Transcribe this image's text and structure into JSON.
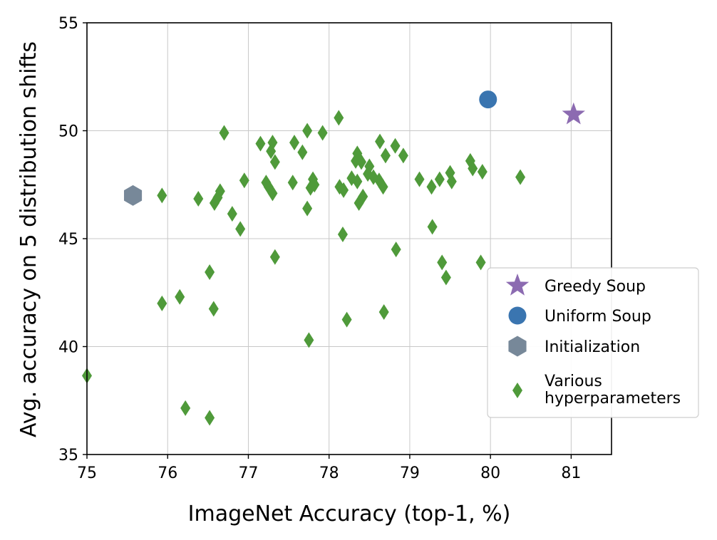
{
  "chart_data": {
    "type": "scatter",
    "xlabel": "ImageNet Accuracy (top-1, %)",
    "ylabel": "Avg. accuracy on 5 distribution shifts",
    "xlim": [
      75,
      81.5
    ],
    "ylim": [
      35,
      55
    ],
    "xticks": [
      75,
      76,
      77,
      78,
      79,
      80,
      81
    ],
    "yticks": [
      35,
      40,
      45,
      50,
      55
    ],
    "xtick_labels": [
      "75",
      "76",
      "77",
      "78",
      "79",
      "80",
      "81"
    ],
    "ytick_labels": [
      "35",
      "40",
      "45",
      "50",
      "55"
    ],
    "grid": true,
    "legend_position": "right",
    "series": [
      {
        "name": "Greedy Soup",
        "marker": "star",
        "color": "#8c6bb1",
        "points": [
          [
            81.03,
            50.75
          ]
        ]
      },
      {
        "name": "Uniform Soup",
        "marker": "circle",
        "color": "#3a75b0",
        "points": [
          [
            79.97,
            51.45
          ]
        ]
      },
      {
        "name": "Initialization",
        "marker": "hexagon",
        "color": "#778899",
        "points": [
          [
            75.57,
            47.0
          ]
        ]
      },
      {
        "name": "Various hyperparameters",
        "legend_lines": [
          "Various",
          "hyperparameters"
        ],
        "marker": "thin_diamond",
        "color": "#4f9a3a",
        "points": [
          [
            75.0,
            38.65
          ],
          [
            75.93,
            47.0
          ],
          [
            75.93,
            42.0
          ],
          [
            76.15,
            42.3
          ],
          [
            76.22,
            37.15
          ],
          [
            76.38,
            46.85
          ],
          [
            76.52,
            43.45
          ],
          [
            76.52,
            36.7
          ],
          [
            76.57,
            41.75
          ],
          [
            76.58,
            46.65
          ],
          [
            76.62,
            46.9
          ],
          [
            76.65,
            47.2
          ],
          [
            76.7,
            49.9
          ],
          [
            76.8,
            46.15
          ],
          [
            76.9,
            45.45
          ],
          [
            76.95,
            47.7
          ],
          [
            77.15,
            49.4
          ],
          [
            77.22,
            47.6
          ],
          [
            77.25,
            47.4
          ],
          [
            77.28,
            49.05
          ],
          [
            77.3,
            49.45
          ],
          [
            77.3,
            47.1
          ],
          [
            77.33,
            48.55
          ],
          [
            77.33,
            44.15
          ],
          [
            77.55,
            47.6
          ],
          [
            77.57,
            49.45
          ],
          [
            77.67,
            49.0
          ],
          [
            77.73,
            50.0
          ],
          [
            77.73,
            46.4
          ],
          [
            77.75,
            40.3
          ],
          [
            77.77,
            47.35
          ],
          [
            77.8,
            47.75
          ],
          [
            77.82,
            47.5
          ],
          [
            77.92,
            49.9
          ],
          [
            78.12,
            50.6
          ],
          [
            78.13,
            47.4
          ],
          [
            78.17,
            45.2
          ],
          [
            78.18,
            47.25
          ],
          [
            78.22,
            41.25
          ],
          [
            78.28,
            47.8
          ],
          [
            78.33,
            48.6
          ],
          [
            78.35,
            48.95
          ],
          [
            78.35,
            47.65
          ],
          [
            78.37,
            46.65
          ],
          [
            78.4,
            48.55
          ],
          [
            78.42,
            46.95
          ],
          [
            78.48,
            48.0
          ],
          [
            78.5,
            48.35
          ],
          [
            78.55,
            47.85
          ],
          [
            78.62,
            47.7
          ],
          [
            78.63,
            49.5
          ],
          [
            78.67,
            47.4
          ],
          [
            78.68,
            41.6
          ],
          [
            78.7,
            48.85
          ],
          [
            78.82,
            49.3
          ],
          [
            78.83,
            44.5
          ],
          [
            78.92,
            48.85
          ],
          [
            79.12,
            47.75
          ],
          [
            79.27,
            47.4
          ],
          [
            79.28,
            45.55
          ],
          [
            79.37,
            47.75
          ],
          [
            79.4,
            43.9
          ],
          [
            79.45,
            43.2
          ],
          [
            79.5,
            48.05
          ],
          [
            79.52,
            47.65
          ],
          [
            79.75,
            48.6
          ],
          [
            79.78,
            48.25
          ],
          [
            79.88,
            43.9
          ],
          [
            79.9,
            48.1
          ],
          [
            80.37,
            47.85
          ]
        ]
      }
    ]
  }
}
